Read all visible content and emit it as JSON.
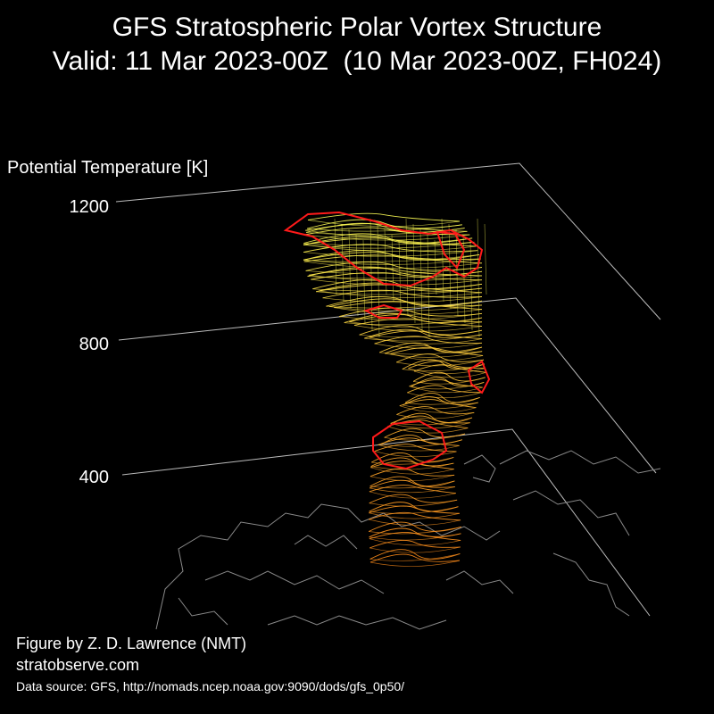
{
  "title": {
    "line1": "GFS Stratospheric Polar Vortex Structure",
    "line2": "Valid: 11 Mar 2023-00Z  (10 Mar 2023-00Z, FH024)"
  },
  "credits": {
    "author": "Figure by Z. D. Lawrence (NMT)",
    "site": "stratobserve.com",
    "source": "Data source: GFS, http://nomads.ncep.noaa.gov:9090/dods/gfs_0p50/"
  },
  "chart_data": {
    "type": "3d-isosurface",
    "zlabel": "Potential Temperature [K]",
    "z_ticks": [
      400,
      800,
      1200
    ],
    "zlim": [
      400,
      1200
    ],
    "grid": true,
    "colors": {
      "low": "#ff8c1a",
      "mid": "#ffc83a",
      "high": "#ffff55",
      "vortex_edge": "#ff1a1a",
      "grid": "#bbbbbb",
      "coastlines": "#8a8a8a"
    }
  }
}
